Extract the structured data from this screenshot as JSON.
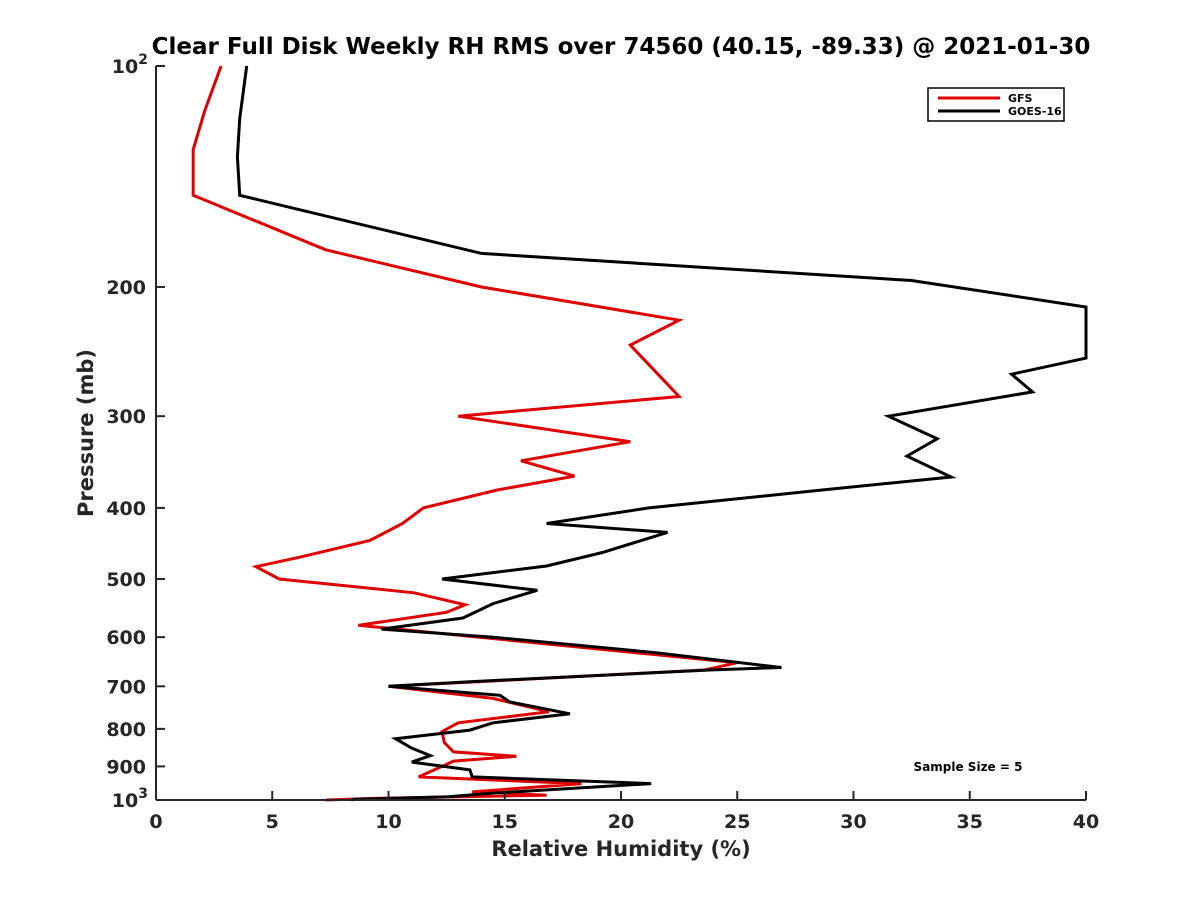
{
  "chart_data": {
    "type": "line",
    "title": "Clear Full Disk Weekly RH RMS over 74560 (40.15, -89.33) @ 2021-01-30",
    "xlabel": "Relative Humidity (%)",
    "ylabel": "Pressure (mb)",
    "xlim": [
      0,
      40
    ],
    "ylim": [
      100,
      1000
    ],
    "y_scale": "log",
    "y_reversed": true,
    "x_ticks": [
      "0",
      "5",
      "10",
      "15",
      "20",
      "25",
      "30",
      "35",
      "40"
    ],
    "y_ticks": [
      {
        "value": 100,
        "base": "10",
        "exp": "2"
      },
      {
        "value": 200,
        "text": "200"
      },
      {
        "value": 300,
        "text": "300"
      },
      {
        "value": 400,
        "text": "400"
      },
      {
        "value": 500,
        "text": "500"
      },
      {
        "value": 600,
        "text": "600"
      },
      {
        "value": 700,
        "text": "700"
      },
      {
        "value": 800,
        "text": "800"
      },
      {
        "value": 900,
        "text": "900"
      },
      {
        "value": 1000,
        "base": "10",
        "exp": "3"
      }
    ],
    "grid": false,
    "legend_position": "top-right",
    "annotation": "Sample Size = 5",
    "series": [
      {
        "name": "GFS",
        "color": "#e00000",
        "points": [
          [
            2.8,
            100
          ],
          [
            2.1,
            115
          ],
          [
            1.6,
            130
          ],
          [
            1.6,
            150
          ],
          [
            7.3,
            178
          ],
          [
            14,
            200
          ],
          [
            22.5,
            222
          ],
          [
            20.4,
            240
          ],
          [
            22.5,
            282
          ],
          [
            13.0,
            300
          ],
          [
            20.4,
            325
          ],
          [
            15.7,
            345
          ],
          [
            18.0,
            362
          ],
          [
            14.7,
            378
          ],
          [
            11.5,
            400
          ],
          [
            10.6,
            420
          ],
          [
            9.2,
            443
          ],
          [
            6.3,
            466
          ],
          [
            4.3,
            481
          ],
          [
            5.3,
            500
          ],
          [
            11.1,
            522
          ],
          [
            13.3,
            542
          ],
          [
            12.5,
            555
          ],
          [
            8.7,
            578
          ],
          [
            25,
            650
          ],
          [
            23.6,
            665
          ],
          [
            10.0,
            700
          ],
          [
            14.5,
            727
          ],
          [
            16.9,
            758
          ],
          [
            13.0,
            785
          ],
          [
            12.3,
            807
          ],
          [
            12.4,
            835
          ],
          [
            12.8,
            860
          ],
          [
            15.5,
            872
          ],
          [
            12.8,
            885
          ],
          [
            11.3,
            930
          ],
          [
            18.3,
            950
          ],
          [
            13.6,
            975
          ],
          [
            16.8,
            985
          ],
          [
            9.4,
            995
          ],
          [
            7.3,
            1000
          ]
        ]
      },
      {
        "name": "GOES-16",
        "color": "#000000",
        "points": [
          [
            3.9,
            100
          ],
          [
            3.6,
            118
          ],
          [
            3.5,
            133
          ],
          [
            3.6,
            150
          ],
          [
            14,
            180
          ],
          [
            32.5,
            196
          ],
          [
            40,
            213
          ],
          [
            40,
            250
          ],
          [
            36.8,
            263
          ],
          [
            37.7,
            278
          ],
          [
            31.5,
            300
          ],
          [
            33.6,
            322
          ],
          [
            32.3,
            340
          ],
          [
            34.2,
            363
          ],
          [
            28.7,
            378
          ],
          [
            21.2,
            400
          ],
          [
            16.8,
            420
          ],
          [
            22.0,
            432
          ],
          [
            19.2,
            460
          ],
          [
            16.8,
            480
          ],
          [
            12.3,
            500
          ],
          [
            16.4,
            518
          ],
          [
            14.5,
            540
          ],
          [
            13.2,
            565
          ],
          [
            9.7,
            585
          ],
          [
            14.5,
            600
          ],
          [
            21.5,
            630
          ],
          [
            26.9,
            660
          ],
          [
            23.8,
            665
          ],
          [
            13.5,
            690
          ],
          [
            10.0,
            700
          ],
          [
            14.8,
            720
          ],
          [
            15.2,
            735
          ],
          [
            17.8,
            763
          ],
          [
            14.5,
            785
          ],
          [
            13.5,
            803
          ],
          [
            10.3,
            825
          ],
          [
            11.0,
            850
          ],
          [
            11.8,
            870
          ],
          [
            11.0,
            888
          ],
          [
            13.5,
            910
          ],
          [
            13.6,
            930
          ],
          [
            21.3,
            950
          ],
          [
            14.2,
            980
          ],
          [
            12.6,
            990
          ],
          [
            8.5,
            998
          ],
          [
            8.4,
            1000
          ]
        ]
      }
    ]
  }
}
